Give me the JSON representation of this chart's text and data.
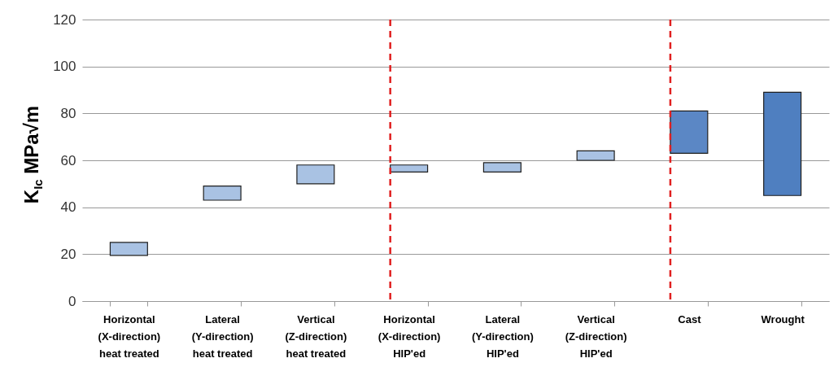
{
  "chart_data": {
    "type": "bar",
    "ylabel": "K$_{Ic}$ MPa√m",
    "categories": [
      "Horizontal\n(X-direction)\nheat treated",
      "Lateral\n(Y-direction)\nheat treated",
      "Vertical\n(Z-direction)\nheat treated",
      "Horizontal\n(X-direction)\nHIP'ed",
      "Lateral\n(Y-direction)\nHIP'ed",
      "Vertical\n(Z-direction)\nHIP'ed",
      "Cast",
      "Wrought"
    ],
    "base": [
      19.5,
      43,
      50,
      55,
      55,
      60,
      63,
      45
    ],
    "values": [
      5.5,
      6,
      8,
      3,
      4,
      4,
      18,
      44
    ],
    "colors": [
      "#a9c2e3",
      "#a9c2e3",
      "#a9c2e3",
      "#a9c2e3",
      "#a9c2e3",
      "#a9c2e3",
      "#5b87c5",
      "#4f7fc0"
    ],
    "ylim": [
      0,
      120
    ],
    "yticks": [
      0,
      20,
      40,
      60,
      80,
      100,
      120
    ],
    "grid": "y",
    "ref_lines": [
      {
        "axis": "x",
        "value": "Horizontal\n(X-direction)\nHIP'ed",
        "color": "#e02020",
        "line_style": "dashed"
      },
      {
        "axis": "x",
        "value": "Cast",
        "color": "#e02020",
        "line_style": "dashed"
      }
    ]
  }
}
